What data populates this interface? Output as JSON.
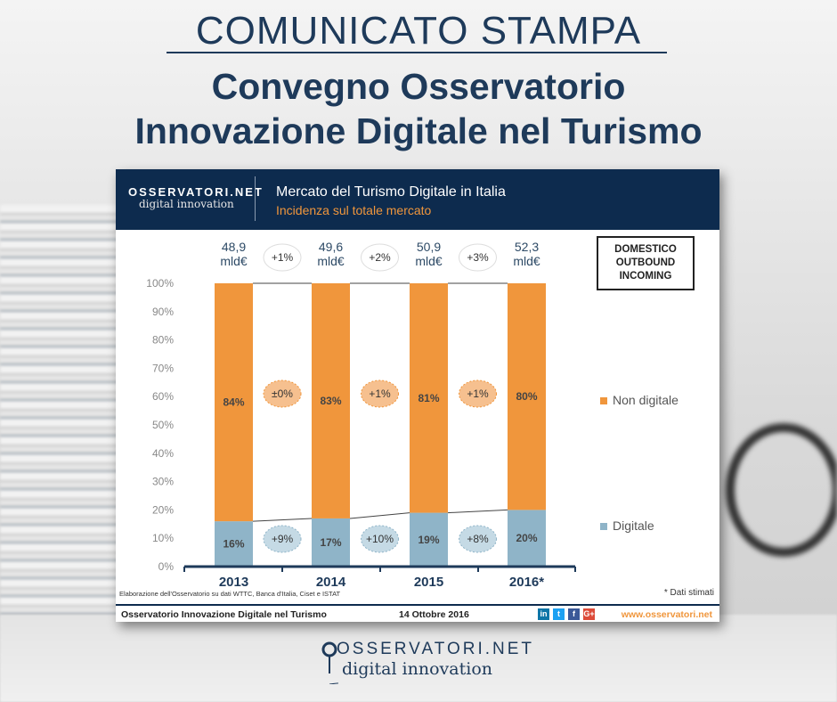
{
  "header": {
    "label": "COMUNICATO STAMPA",
    "title_line1": "Convegno Osservatorio",
    "title_line2": "Innovazione Digitale nel Turismo"
  },
  "card": {
    "logo_top": "OSSERVATORI.NET",
    "logo_bottom": "digital innovation",
    "title": "Mercato del Turismo Digitale in Italia",
    "subtitle": "Incidenza sul totale mercato",
    "legend_box": [
      "DOMESTICO",
      "OUTBOUND",
      "INCOMING"
    ],
    "source": "Elaborazione dell'Osservatorio su dati WTTC, Banca d'Italia, Ciset e ISTAT",
    "note": "* Dati stimati",
    "footer": {
      "left": "Osservatorio Innovazione Digitale nel Turismo",
      "date": "14 Ottobre 2016",
      "website": "www.osservatori.net",
      "social": [
        "linkedin-icon",
        "twitter-icon",
        "facebook-icon",
        "googleplus-icon"
      ]
    }
  },
  "bottom_logo": {
    "top": "OSSERVATORI.NET",
    "bottom": "digital innovation"
  },
  "colors": {
    "non_digitale": "#f0963c",
    "digitale": "#8fb4c8",
    "navy": "#0d2b4e"
  },
  "chart_data": {
    "type": "bar",
    "stacked": true,
    "categories": [
      "2013",
      "2014",
      "2015",
      "2016*"
    ],
    "series": [
      {
        "name": "Digitale",
        "values": [
          16,
          17,
          19,
          20
        ],
        "labels": [
          "16%",
          "17%",
          "19%",
          "20%"
        ]
      },
      {
        "name": "Non digitale",
        "values": [
          84,
          83,
          81,
          80
        ],
        "labels": [
          "84%",
          "83%",
          "81%",
          "80%"
        ]
      }
    ],
    "totals": [
      "48,9 mld€",
      "49,6 mld€",
      "50,9 mld€",
      "52,3 mld€"
    ],
    "total_growth": [
      "+1%",
      "+2%",
      "+3%"
    ],
    "non_digitale_growth": [
      "±0%",
      "+1%",
      "+1%"
    ],
    "digitale_growth": [
      "+9%",
      "+10%",
      "+8%"
    ],
    "yticks": [
      "0%",
      "10%",
      "20%",
      "30%",
      "40%",
      "50%",
      "60%",
      "70%",
      "80%",
      "90%",
      "100%"
    ],
    "ylim": [
      0,
      100
    ],
    "legend": "right",
    "grid": false
  }
}
